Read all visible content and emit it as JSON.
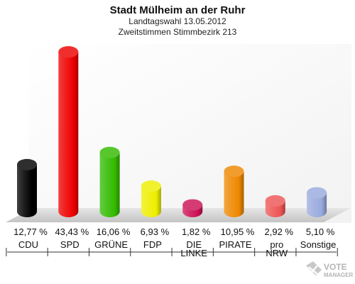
{
  "chart_data": {
    "type": "bar",
    "title": "Stadt Mülheim an der Ruhr",
    "subtitle_lines": [
      "Landtagswahl 13.05.2012",
      "Zweitstimmen Stimmbezirk 213"
    ],
    "categories": [
      "CDU",
      "SPD",
      "GRÜNE",
      "FDP",
      "DIE LINKE",
      "PIRATE",
      "pro NRW",
      "Sonstige"
    ],
    "category_lines": [
      [
        "CDU"
      ],
      [
        "SPD"
      ],
      [
        "GRÜNE"
      ],
      [
        "FDP"
      ],
      [
        "DIE",
        "LINKE"
      ],
      [
        "PIRATE"
      ],
      [
        "pro",
        "NRW"
      ],
      [
        "Sonstige"
      ]
    ],
    "values": [
      12.77,
      43.43,
      16.06,
      6.93,
      1.82,
      10.95,
      2.92,
      5.1
    ],
    "value_labels": [
      "12,77 %",
      "43,43 %",
      "16,06 %",
      "6,93 %",
      "1,82 %",
      "10,95 %",
      "2,92 %",
      "5,10 %"
    ],
    "colors": [
      "#000000",
      "#ee0000",
      "#33bb00",
      "#eeee00",
      "#cc1155",
      "#ee8800",
      "#ee5555",
      "#99aadd"
    ],
    "ylim": [
      0,
      43.43
    ],
    "grid": false,
    "legend": "none"
  },
  "logo": {
    "lines": [
      "VOTE",
      "MANAGER"
    ],
    "icon": "ballot-cross-icon"
  }
}
